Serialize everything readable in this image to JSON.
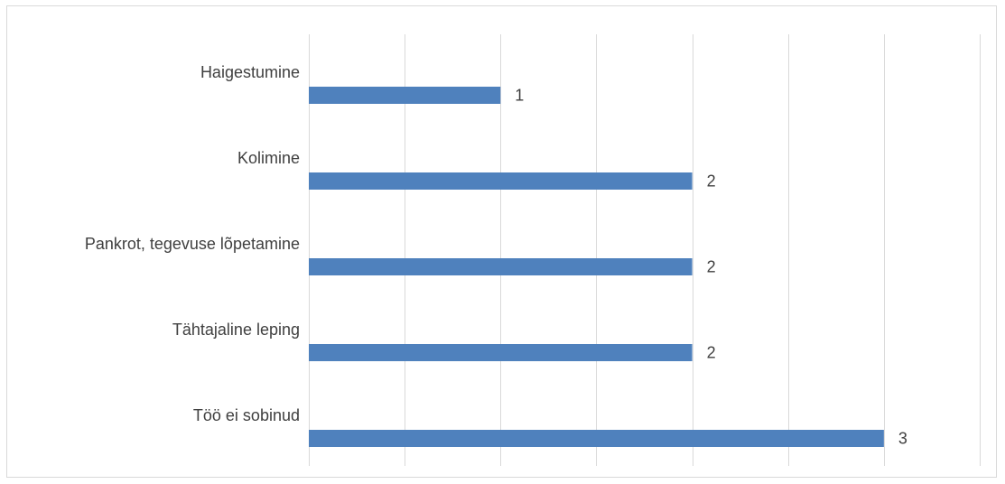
{
  "chart_data": {
    "type": "bar",
    "orientation": "horizontal",
    "categories": [
      "Haigestumine",
      "Kolimine",
      "Pankrot, tegevuse lõpetamine",
      "Tähtajaline leping",
      "Töö ei sobinud"
    ],
    "values": [
      1,
      2,
      2,
      2,
      3
    ],
    "data_labels": [
      "1",
      "2",
      "2",
      "2",
      "3"
    ],
    "title": "",
    "xlabel": "",
    "ylabel": "",
    "xlim": [
      0,
      3.5
    ],
    "gridline_step": 0.5,
    "grid": true,
    "legend": "none",
    "bar_color": "#4f81bd",
    "grid_color": "#d9d9d9",
    "text_color": "#404040"
  }
}
